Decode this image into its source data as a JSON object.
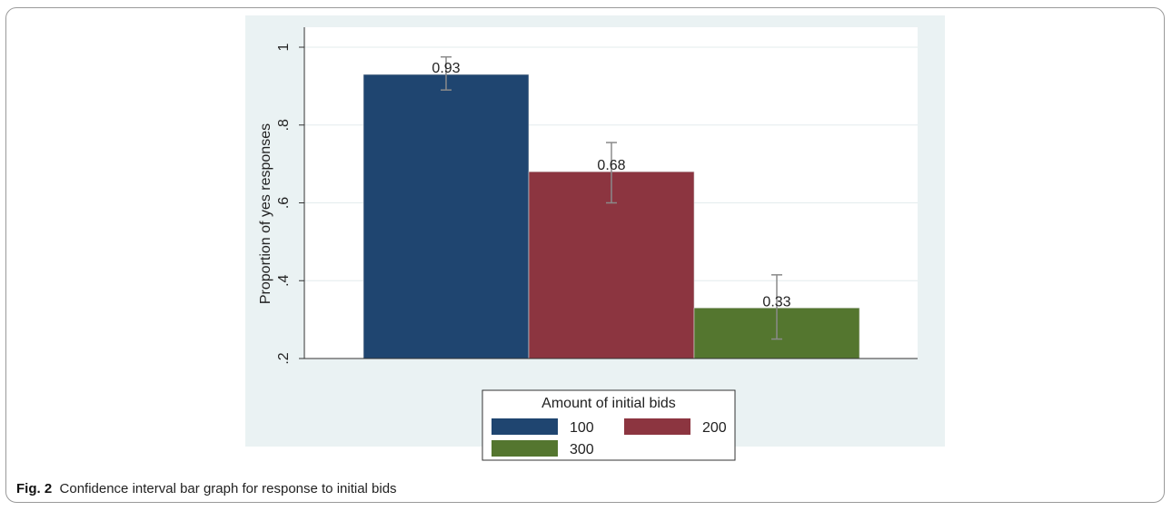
{
  "chart_data": {
    "type": "bar",
    "title": "",
    "ylabel": "Proportion of yes responses",
    "xlabel": "",
    "ylim": [
      0.2,
      1.0
    ],
    "yticks": [
      0.2,
      0.4,
      0.6,
      0.8,
      1.0
    ],
    "ytick_labels": [
      ".2",
      ".4",
      ".6",
      ".8",
      "1"
    ],
    "grid": true,
    "legend": {
      "title": "Amount of initial bids",
      "position": "bottom"
    },
    "categories": [
      "100",
      "200",
      "300"
    ],
    "values": [
      0.93,
      0.68,
      0.33
    ],
    "value_labels": [
      "0.93",
      "0.68",
      "0.33"
    ],
    "ci_lower": [
      0.89,
      0.6,
      0.25
    ],
    "ci_upper": [
      0.975,
      0.755,
      0.415
    ],
    "colors": [
      "#1f4570",
      "#8c3540",
      "#54762f"
    ]
  },
  "caption": {
    "label": "Fig. 2",
    "text": "Confidence interval bar graph for response to initial bids"
  }
}
